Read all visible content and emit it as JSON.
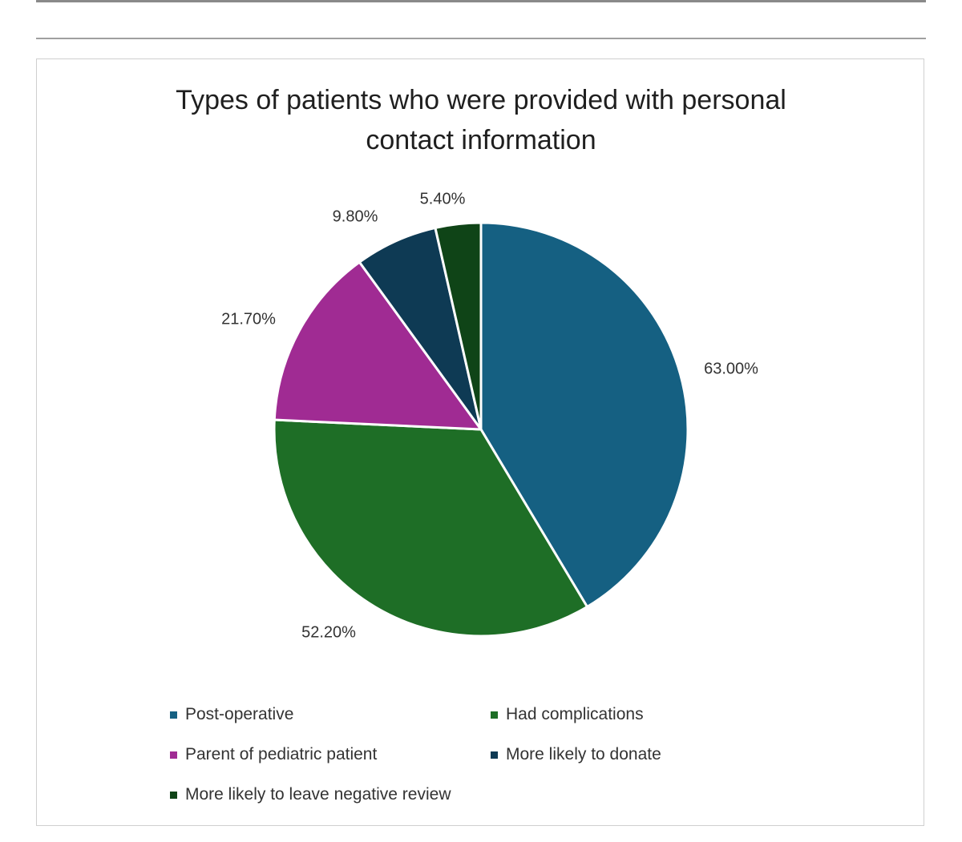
{
  "chart_data": {
    "type": "pie",
    "title_lines": [
      "Types of patients who were provided with personal",
      "contact information"
    ],
    "categories": [
      "Post-operative",
      "Had complications",
      "Parent of pediatric patient",
      "More likely to donate",
      "More likely to leave negative review"
    ],
    "values": [
      63.0,
      52.2,
      21.7,
      9.8,
      5.4
    ],
    "data_labels": [
      "63.00%",
      "52.20%",
      "21.70%",
      "9.80%",
      "5.40%"
    ],
    "colors": [
      "#156082",
      "#1e6e26",
      "#a02b93",
      "#0e3a54",
      "#0f4417"
    ],
    "legend_position": "bottom"
  }
}
